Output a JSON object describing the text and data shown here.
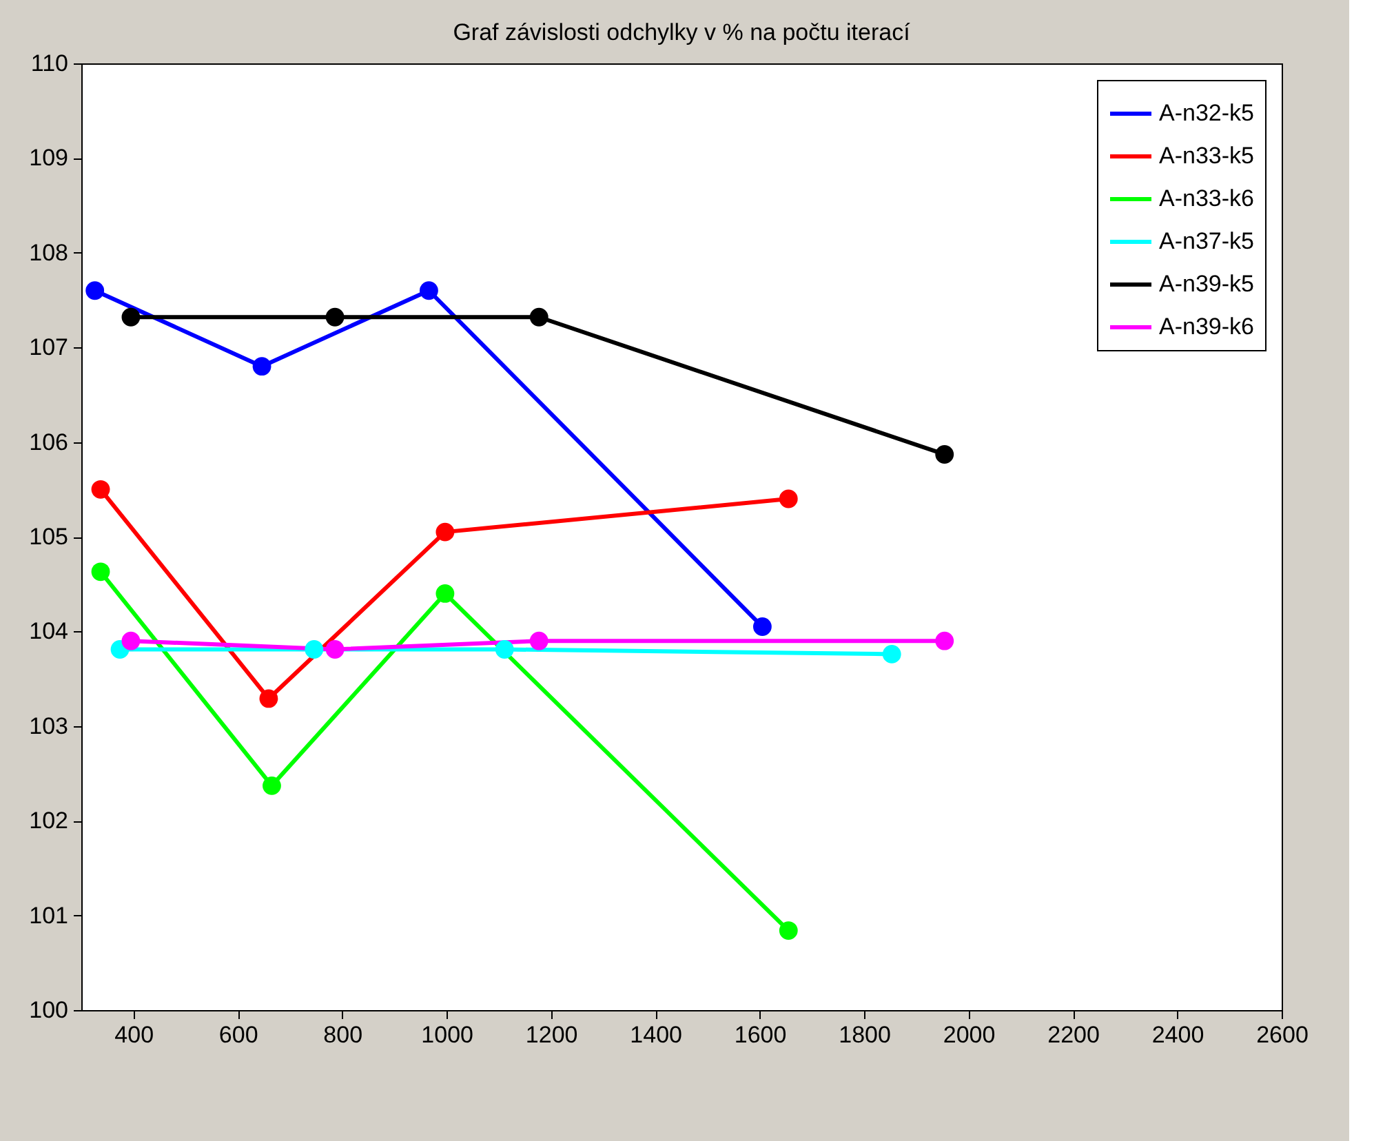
{
  "chart_data": {
    "type": "line",
    "title": "Graf závislosti odchylky v % na počtu iterací",
    "xlim": [
      300,
      2600
    ],
    "xticks": [
      400,
      600,
      800,
      1000,
      1200,
      1400,
      1600,
      1800,
      2000,
      2200,
      2400,
      2600
    ],
    "ylim": [
      100,
      110
    ],
    "yticks": [
      100,
      101,
      102,
      103,
      104,
      105,
      106,
      107,
      108,
      109,
      110
    ],
    "grid": false,
    "legend": "top right",
    "marker": "circle",
    "line_style": "solid",
    "series": [
      {
        "name": "A-n32-k5",
        "color": "#0000ff",
        "x": [
          326,
          646,
          966,
          1605
        ],
        "values": [
          107.6,
          106.8,
          107.6,
          104.05
        ]
      },
      {
        "name": "A-n33-k5",
        "color": "#ff0000",
        "x": [
          337,
          659,
          997,
          1655
        ],
        "values": [
          105.5,
          103.29,
          105.05,
          105.4
        ]
      },
      {
        "name": "A-n33-k6",
        "color": "#00ff00",
        "x": [
          337,
          665,
          997,
          1655
        ],
        "values": [
          104.63,
          102.37,
          104.4,
          100.84
        ]
      },
      {
        "name": "A-n37-k5",
        "color": "#00ffff",
        "x": [
          374,
          746,
          1111,
          1853
        ],
        "values": [
          103.81,
          103.81,
          103.81,
          103.76
        ]
      },
      {
        "name": "A-n39-k5",
        "color": "#000000",
        "x": [
          395,
          786,
          1177,
          1954
        ],
        "values": [
          107.32,
          107.32,
          107.32,
          105.87
        ]
      },
      {
        "name": "A-n39-k6",
        "color": "#ff00ff",
        "x": [
          395,
          786,
          1177,
          1954
        ],
        "values": [
          103.9,
          103.81,
          103.9,
          103.9
        ]
      }
    ]
  }
}
